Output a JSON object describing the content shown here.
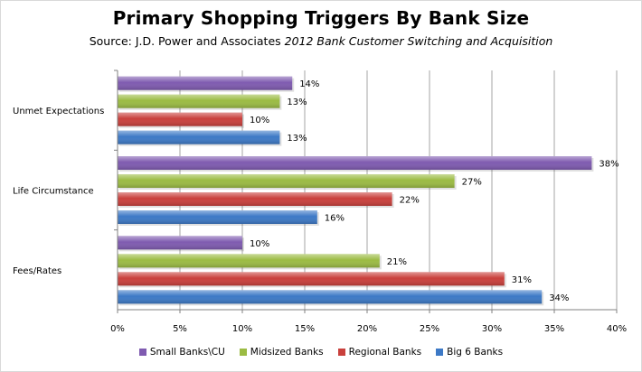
{
  "chart_data": {
    "type": "bar",
    "orientation": "horizontal",
    "title": "Primary Shopping Triggers By Bank Size",
    "subtitle_plain": "Source: J.D. Power and Associates ",
    "subtitle_italic": "2012 Bank Customer Switching and Acquisition",
    "categories": [
      "Unmet Expectations",
      "Life Circumstance",
      "Fees/Rates"
    ],
    "series": [
      {
        "name": "Small Banks\\CU",
        "color": "#7f5bb0",
        "values": [
          14,
          38,
          10
        ]
      },
      {
        "name": "Midsized Banks",
        "color": "#9bbb43",
        "values": [
          13,
          27,
          21
        ]
      },
      {
        "name": "Regional Banks",
        "color": "#c9403c",
        "values": [
          10,
          22,
          31
        ]
      },
      {
        "name": "Big 6 Banks",
        "color": "#3d79c6",
        "values": [
          13,
          16,
          34
        ]
      }
    ],
    "xlim": [
      0,
      40
    ],
    "xticks": [
      "0%",
      "5%",
      "10%",
      "15%",
      "20%",
      "25%",
      "30%",
      "35%",
      "40%"
    ],
    "value_suffix": "%",
    "grid": true,
    "legend_position": "bottom"
  }
}
